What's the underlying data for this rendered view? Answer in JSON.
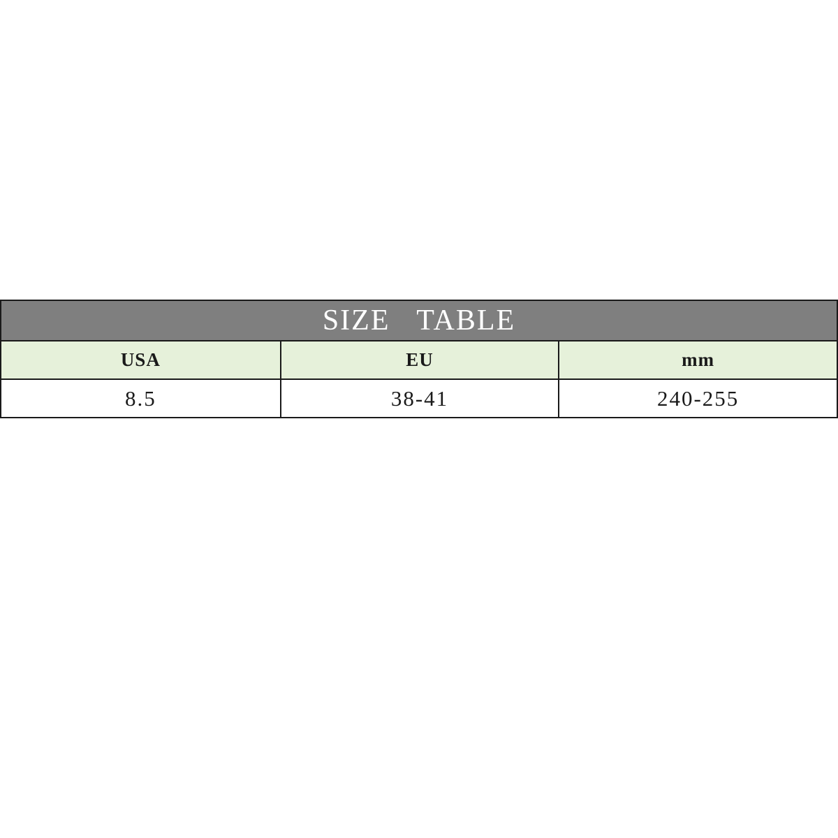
{
  "page": {
    "background": "#ffffff"
  },
  "table": {
    "title": "SIZE TABLE",
    "columns": [
      "USA",
      "EU",
      "mm"
    ],
    "rows": [
      [
        "8.5",
        "38-41",
        "240-255"
      ]
    ],
    "colors": {
      "title_bg": "#7f7f7f",
      "title_text": "#ffffff",
      "header_bg": "#e6f1da",
      "row_bg": "#ffffff",
      "border": "#1a1a1a",
      "text": "#1a1a1a"
    }
  },
  "chart_data": {
    "type": "table",
    "title": "SIZE TABLE",
    "columns": [
      "USA",
      "EU",
      "mm"
    ],
    "rows": [
      [
        "8.5",
        "38-41",
        "240-255"
      ]
    ],
    "layout": {
      "title_bar": "gray background, white centered serif text",
      "header_row": "light green background, bold black text",
      "data_row": "white background, black text",
      "columns_equal_width": true,
      "grid": true
    }
  }
}
